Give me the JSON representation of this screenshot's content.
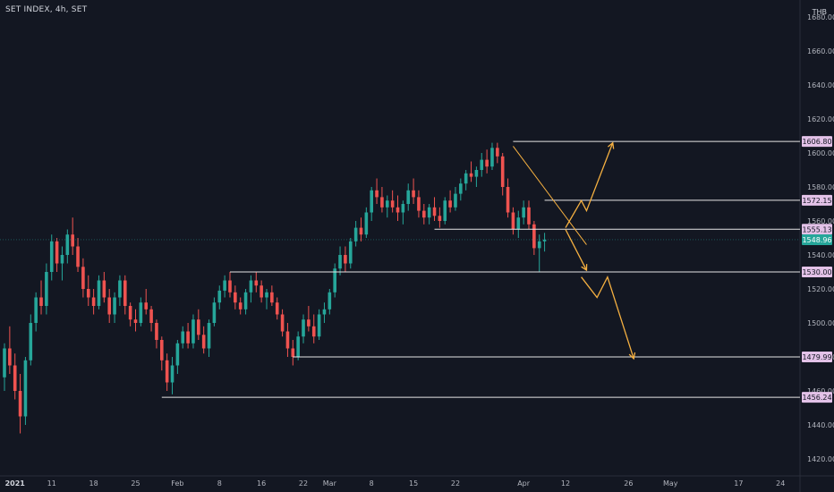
{
  "header": {
    "title": "SET INDEX, 4h, SET",
    "currency": "THB"
  },
  "colors": {
    "background": "#131722",
    "up": "#26a69a",
    "down": "#ef5350",
    "level_line": "#e6e6e6",
    "arrow": "#f5b041",
    "trend_line": "#f5b041",
    "level_label_bg": "#e3c2e8",
    "current_label_bg": "#26a69a"
  },
  "chart_data": {
    "type": "candlestick",
    "title": "SET INDEX, 4h, SET",
    "xlabel": "",
    "ylabel": "",
    "ylim": [
      1410,
      1690
    ],
    "grid": false,
    "y_ticks": [
      1420,
      1440,
      1460,
      1480,
      1500,
      1520,
      1540,
      1560,
      1580,
      1600,
      1620,
      1640,
      1660,
      1680
    ],
    "y_tick_labels": [
      "1420.00",
      "1440.00",
      "1460.00",
      "1480.00",
      "1500.00",
      "1520.00",
      "1540.00",
      "1560.00",
      "1580.00",
      "1600.00",
      "1620.00",
      "1640.00",
      "1660.00",
      "1680.00"
    ],
    "x_ticks": [
      {
        "i": 2,
        "label": "2021",
        "bold": true
      },
      {
        "i": 9,
        "label": "11"
      },
      {
        "i": 17,
        "label": "18"
      },
      {
        "i": 25,
        "label": "25"
      },
      {
        "i": 33,
        "label": "Feb"
      },
      {
        "i": 41,
        "label": "8"
      },
      {
        "i": 49,
        "label": "16"
      },
      {
        "i": 57,
        "label": "22"
      },
      {
        "i": 62,
        "label": "Mar"
      },
      {
        "i": 70,
        "label": "8"
      },
      {
        "i": 78,
        "label": "15"
      },
      {
        "i": 86,
        "label": "22"
      },
      {
        "i": 99,
        "label": "Apr"
      },
      {
        "i": 107,
        "label": "12"
      },
      {
        "i": 119,
        "label": "26"
      },
      {
        "i": 127,
        "label": "May"
      },
      {
        "i": 140,
        "label": "17"
      },
      {
        "i": 148,
        "label": "24"
      }
    ],
    "candles": [
      [
        1468,
        1488,
        1460,
        1485
      ],
      [
        1485,
        1498,
        1470,
        1475
      ],
      [
        1475,
        1482,
        1455,
        1460
      ],
      [
        1460,
        1470,
        1435,
        1445
      ],
      [
        1445,
        1480,
        1440,
        1478
      ],
      [
        1478,
        1505,
        1475,
        1500
      ],
      [
        1500,
        1518,
        1495,
        1515
      ],
      [
        1515,
        1525,
        1505,
        1510
      ],
      [
        1510,
        1535,
        1505,
        1530
      ],
      [
        1530,
        1552,
        1525,
        1548
      ],
      [
        1548,
        1550,
        1530,
        1535
      ],
      [
        1535,
        1545,
        1525,
        1540
      ],
      [
        1540,
        1555,
        1535,
        1552
      ],
      [
        1552,
        1562,
        1540,
        1545
      ],
      [
        1545,
        1550,
        1530,
        1533
      ],
      [
        1533,
        1538,
        1515,
        1520
      ],
      [
        1520,
        1528,
        1510,
        1515
      ],
      [
        1515,
        1520,
        1505,
        1510
      ],
      [
        1510,
        1528,
        1508,
        1525
      ],
      [
        1525,
        1530,
        1512,
        1515
      ],
      [
        1515,
        1520,
        1500,
        1505
      ],
      [
        1505,
        1518,
        1500,
        1515
      ],
      [
        1515,
        1528,
        1510,
        1525
      ],
      [
        1525,
        1528,
        1505,
        1510
      ],
      [
        1510,
        1512,
        1498,
        1502
      ],
      [
        1502,
        1508,
        1495,
        1500
      ],
      [
        1500,
        1515,
        1498,
        1512
      ],
      [
        1512,
        1520,
        1505,
        1508
      ],
      [
        1508,
        1510,
        1495,
        1500
      ],
      [
        1500,
        1502,
        1485,
        1490
      ],
      [
        1490,
        1492,
        1472,
        1478
      ],
      [
        1478,
        1482,
        1460,
        1465
      ],
      [
        1465,
        1480,
        1458,
        1475
      ],
      [
        1475,
        1490,
        1470,
        1488
      ],
      [
        1488,
        1498,
        1485,
        1495
      ],
      [
        1495,
        1500,
        1485,
        1488
      ],
      [
        1488,
        1505,
        1485,
        1502
      ],
      [
        1502,
        1508,
        1490,
        1493
      ],
      [
        1493,
        1498,
        1482,
        1485
      ],
      [
        1485,
        1502,
        1480,
        1500
      ],
      [
        1500,
        1515,
        1498,
        1512
      ],
      [
        1512,
        1522,
        1508,
        1519
      ],
      [
        1519,
        1528,
        1515,
        1525
      ],
      [
        1525,
        1530,
        1515,
        1518
      ],
      [
        1518,
        1522,
        1508,
        1512
      ],
      [
        1512,
        1515,
        1505,
        1508
      ],
      [
        1508,
        1520,
        1505,
        1518
      ],
      [
        1518,
        1528,
        1512,
        1525
      ],
      [
        1525,
        1530,
        1518,
        1522
      ],
      [
        1522,
        1525,
        1512,
        1515
      ],
      [
        1515,
        1520,
        1508,
        1518
      ],
      [
        1518,
        1522,
        1510,
        1512
      ],
      [
        1512,
        1515,
        1502,
        1505
      ],
      [
        1505,
        1508,
        1492,
        1495
      ],
      [
        1495,
        1500,
        1480,
        1485
      ],
      [
        1485,
        1490,
        1475,
        1480
      ],
      [
        1480,
        1495,
        1478,
        1492
      ],
      [
        1492,
        1505,
        1488,
        1502
      ],
      [
        1502,
        1510,
        1495,
        1498
      ],
      [
        1498,
        1505,
        1488,
        1492
      ],
      [
        1492,
        1508,
        1490,
        1505
      ],
      [
        1505,
        1512,
        1500,
        1508
      ],
      [
        1508,
        1520,
        1505,
        1518
      ],
      [
        1518,
        1535,
        1515,
        1532
      ],
      [
        1532,
        1545,
        1528,
        1540
      ],
      [
        1540,
        1545,
        1530,
        1535
      ],
      [
        1535,
        1550,
        1532,
        1548
      ],
      [
        1548,
        1560,
        1545,
        1556
      ],
      [
        1556,
        1562,
        1548,
        1552
      ],
      [
        1552,
        1568,
        1550,
        1565
      ],
      [
        1565,
        1580,
        1560,
        1578
      ],
      [
        1578,
        1585,
        1570,
        1574
      ],
      [
        1574,
        1580,
        1565,
        1568
      ],
      [
        1568,
        1575,
        1562,
        1572
      ],
      [
        1572,
        1578,
        1565,
        1568
      ],
      [
        1568,
        1575,
        1560,
        1565
      ],
      [
        1565,
        1572,
        1558,
        1570
      ],
      [
        1570,
        1582,
        1566,
        1578
      ],
      [
        1578,
        1585,
        1570,
        1574
      ],
      [
        1574,
        1578,
        1562,
        1566
      ],
      [
        1566,
        1570,
        1558,
        1562
      ],
      [
        1562,
        1570,
        1558,
        1568
      ],
      [
        1568,
        1574,
        1560,
        1563
      ],
      [
        1563,
        1568,
        1556,
        1560
      ],
      [
        1560,
        1574,
        1558,
        1572
      ],
      [
        1572,
        1578,
        1565,
        1568
      ],
      [
        1568,
        1580,
        1566,
        1576
      ],
      [
        1576,
        1585,
        1572,
        1582
      ],
      [
        1582,
        1590,
        1578,
        1588
      ],
      [
        1588,
        1595,
        1583,
        1586
      ],
      [
        1586,
        1592,
        1580,
        1590
      ],
      [
        1590,
        1600,
        1586,
        1596
      ],
      [
        1596,
        1602,
        1588,
        1592
      ],
      [
        1592,
        1606,
        1590,
        1603
      ],
      [
        1603,
        1606,
        1594,
        1598
      ],
      [
        1598,
        1600,
        1575,
        1580
      ],
      [
        1580,
        1585,
        1562,
        1565
      ],
      [
        1565,
        1568,
        1552,
        1555
      ],
      [
        1555,
        1566,
        1550,
        1562
      ],
      [
        1562,
        1572,
        1558,
        1568
      ],
      [
        1568,
        1572,
        1555,
        1558
      ],
      [
        1558,
        1560,
        1540,
        1544
      ],
      [
        1544,
        1552,
        1530,
        1548
      ],
      [
        1548,
        1553,
        1542,
        1549
      ]
    ],
    "levels": [
      {
        "value": 1606.8,
        "label": "1606.80",
        "from_i": 97
      },
      {
        "value": 1572.15,
        "label": "1572.15",
        "from_i": 103
      },
      {
        "value": 1555.13,
        "label": "1555.13",
        "from_i": 82
      },
      {
        "value": 1530.0,
        "label": "1530.00",
        "from_i": 43
      },
      {
        "value": 1479.99,
        "label": "1479.99",
        "from_i": 55
      },
      {
        "value": 1456.24,
        "label": "1456.24",
        "from_i": 30
      }
    ],
    "current_price": {
      "value": 1548.96,
      "label": "1548.96"
    },
    "trend_line": [
      [
        97,
        1604
      ],
      [
        111,
        1546
      ]
    ],
    "projection_up": [
      [
        107,
        1556
      ],
      [
        110,
        1572
      ],
      [
        111,
        1566
      ],
      [
        116,
        1606
      ]
    ],
    "projection_down_short": [
      [
        107,
        1555
      ],
      [
        111,
        1531
      ]
    ],
    "projection_down_long": [
      [
        110,
        1527
      ],
      [
        113,
        1515
      ],
      [
        115,
        1527
      ],
      [
        120,
        1479
      ]
    ]
  }
}
